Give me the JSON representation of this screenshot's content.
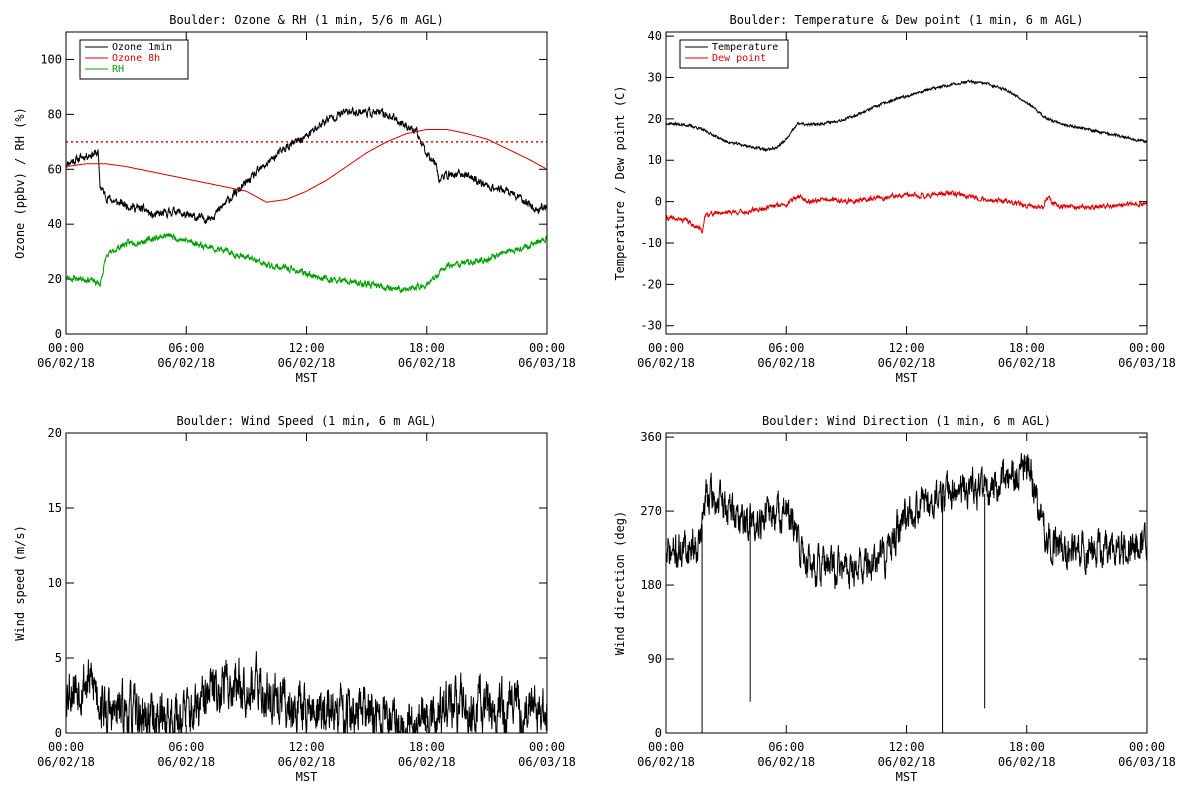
{
  "chart_data": [
    {
      "type": "line",
      "title": "Boulder: Ozone & RH (1 min, 5/6 m AGL)",
      "ylabel": "Ozone (ppbv) / RH (%)",
      "xlabel": "MST",
      "ylim": [
        0,
        110
      ],
      "yticks": [
        0,
        20,
        40,
        60,
        80,
        100
      ],
      "xlim": [
        0,
        24
      ],
      "xticks": [
        {
          "x": 0,
          "time": "00:00",
          "date": "06/02/18"
        },
        {
          "x": 6,
          "time": "06:00",
          "date": "06/02/18"
        },
        {
          "x": 12,
          "time": "12:00",
          "date": "06/02/18"
        },
        {
          "x": 18,
          "time": "18:00",
          "date": "06/02/18"
        },
        {
          "x": 24,
          "time": "00:00",
          "date": "06/03/18"
        }
      ],
      "legend_position": "top-left",
      "threshold": {
        "value": 70,
        "color": "#dd0000",
        "style": "dotted"
      },
      "series": [
        {
          "name": "Ozone 1min",
          "color": "#000000",
          "noise": 1.2,
          "seed": 11,
          "x": [
            0,
            1,
            1.6,
            1.7,
            2,
            2.5,
            3,
            4,
            4.3,
            5,
            5.5,
            6,
            7,
            7.5,
            8,
            9,
            10,
            11,
            12,
            13,
            14,
            15,
            16,
            17,
            17.5,
            18,
            18.5,
            18.6,
            19,
            19.5,
            20,
            21,
            22,
            23,
            23.5,
            24
          ],
          "y": [
            62,
            65,
            66,
            54,
            50,
            48,
            47,
            45,
            43,
            44,
            45,
            43,
            42,
            44,
            48,
            55,
            62,
            68,
            72,
            78,
            81,
            81,
            80,
            76,
            73,
            66,
            62,
            56,
            58,
            58,
            58,
            54,
            52,
            48,
            45,
            47
          ]
        },
        {
          "name": "Ozone 8h",
          "color": "#dd0000",
          "noise": 0,
          "x": [
            0,
            1,
            2,
            3,
            4,
            5,
            6,
            7,
            8,
            9,
            10,
            11,
            12,
            13,
            14,
            15,
            16,
            17,
            18,
            19,
            20,
            21,
            22,
            23,
            24
          ],
          "y": [
            61,
            62,
            62,
            61,
            59.5,
            58,
            56.5,
            55,
            53.5,
            52,
            48,
            49,
            52,
            56,
            61,
            66,
            70,
            73,
            74.5,
            74.5,
            73,
            71,
            67.5,
            64,
            60
          ]
        },
        {
          "name": "RH",
          "color": "#00a000",
          "noise": 0.9,
          "seed": 23,
          "x": [
            0,
            1,
            1.3,
            1.7,
            2,
            2.5,
            3,
            4,
            5,
            6,
            7,
            8,
            9,
            10,
            11,
            12,
            13,
            14,
            15,
            16,
            17,
            17.5,
            18,
            18.5,
            19,
            20,
            21,
            22,
            23,
            24
          ],
          "y": [
            20.5,
            20,
            19.5,
            18,
            28,
            31,
            33,
            34,
            36,
            34,
            32,
            30,
            28,
            25,
            24,
            22,
            20,
            19,
            18,
            17,
            16,
            17,
            18,
            21,
            25,
            26,
            27,
            30,
            32,
            35
          ]
        }
      ]
    },
    {
      "type": "line",
      "title": "Boulder: Temperature & Dew point (1 min, 6 m AGL)",
      "ylabel": "Temperature / Dew point (C)",
      "xlabel": "MST",
      "ylim": [
        -32,
        41
      ],
      "yticks": [
        -30,
        -20,
        -10,
        0,
        10,
        20,
        30,
        40
      ],
      "xlim": [
        0,
        24
      ],
      "xticks": [
        {
          "x": 0,
          "time": "00:00",
          "date": "06/02/18"
        },
        {
          "x": 6,
          "time": "06:00",
          "date": "06/02/18"
        },
        {
          "x": 12,
          "time": "12:00",
          "date": "06/02/18"
        },
        {
          "x": 18,
          "time": "18:00",
          "date": "06/02/18"
        },
        {
          "x": 24,
          "time": "00:00",
          "date": "06/03/18"
        }
      ],
      "legend_position": "top-left",
      "series": [
        {
          "name": "Temperature",
          "color": "#000000",
          "noise": 0.25,
          "seed": 37,
          "x": [
            0,
            1,
            1.5,
            2,
            3,
            4,
            5,
            5.5,
            6,
            6.6,
            7,
            8,
            9,
            10,
            11,
            12,
            13,
            14,
            15,
            16,
            17,
            18,
            19,
            20,
            21,
            22,
            23,
            24
          ],
          "y": [
            19,
            18.5,
            18,
            17,
            14.5,
            13.5,
            12.5,
            13,
            15,
            19,
            18.5,
            19,
            20,
            22,
            24,
            25.5,
            27,
            28,
            29,
            28.5,
            27,
            24,
            20,
            18.5,
            17.5,
            16.5,
            15.5,
            14.5
          ]
        },
        {
          "name": "Dew point",
          "color": "#dd0000",
          "noise": 0.45,
          "seed": 41,
          "x": [
            0,
            1,
            1.5,
            1.8,
            2,
            3,
            4,
            5,
            6,
            6.7,
            7,
            8,
            9,
            10,
            11,
            12,
            13,
            14,
            15,
            16,
            17,
            18,
            18.8,
            19,
            19.5,
            20,
            21,
            22,
            23,
            24
          ],
          "y": [
            -4,
            -4.5,
            -6,
            -7,
            -3,
            -2.5,
            -2.5,
            -1.5,
            -0.5,
            1.5,
            0,
            0.5,
            0,
            0.5,
            1,
            1.5,
            1.5,
            2,
            1.5,
            0.5,
            0,
            -1,
            -1.5,
            1,
            -1,
            -1,
            -1.5,
            -1,
            -0.8,
            -0.5
          ]
        }
      ]
    },
    {
      "type": "line",
      "title": "Boulder: Wind Speed (1 min, 6 m AGL)",
      "ylabel": "Wind speed (m/s)",
      "xlabel": "MST",
      "ylim": [
        0,
        20
      ],
      "yticks": [
        0,
        5,
        10,
        15,
        20
      ],
      "xlim": [
        0,
        24
      ],
      "xticks": [
        {
          "x": 0,
          "time": "00:00",
          "date": "06/02/18"
        },
        {
          "x": 6,
          "time": "06:00",
          "date": "06/02/18"
        },
        {
          "x": 12,
          "time": "12:00",
          "date": "06/02/18"
        },
        {
          "x": 18,
          "time": "18:00",
          "date": "06/02/18"
        },
        {
          "x": 24,
          "time": "00:00",
          "date": "06/03/18"
        }
      ],
      "series": [
        {
          "name": "",
          "color": "#000000",
          "noise": 1.4,
          "seed": 53,
          "x": [
            0,
            0.5,
            1,
            1.5,
            2,
            3,
            4,
            5,
            6,
            6.5,
            7,
            7.5,
            8,
            9,
            10,
            11,
            12,
            13,
            14,
            15,
            16,
            17,
            18,
            19,
            20,
            21,
            22,
            23,
            24
          ],
          "y": [
            3,
            3.2,
            3.5,
            3,
            1.2,
            1.4,
            1,
            1,
            1.3,
            1.4,
            2.2,
            3,
            3.3,
            3.4,
            2.6,
            2,
            1.6,
            1.3,
            1.3,
            1.2,
            1,
            0.9,
            1,
            1.6,
            1.8,
            1.6,
            1.4,
            1.5,
            1.3
          ]
        }
      ]
    },
    {
      "type": "line",
      "title": "Boulder: Wind Direction (1 min, 6 m AGL)",
      "ylabel": "Wind direction (deg)",
      "xlabel": "MST",
      "ylim": [
        0,
        365
      ],
      "yticks": [
        0,
        90,
        180,
        270,
        360
      ],
      "xlim": [
        0,
        24
      ],
      "xticks": [
        {
          "x": 0,
          "time": "00:00",
          "date": "06/02/18"
        },
        {
          "x": 6,
          "time": "06:00",
          "date": "06/02/18"
        },
        {
          "x": 12,
          "time": "12:00",
          "date": "06/02/18"
        },
        {
          "x": 18,
          "time": "18:00",
          "date": "06/02/18"
        },
        {
          "x": 24,
          "time": "00:00",
          "date": "06/03/18"
        }
      ],
      "spikes": [
        {
          "x": 1.8,
          "y": 0
        },
        {
          "x": 4.2,
          "y": 38
        },
        {
          "x": 13.8,
          "y": 0
        },
        {
          "x": 15.9,
          "y": 30
        }
      ],
      "series": [
        {
          "name": "",
          "color": "#000000",
          "noise": 18,
          "seed": 71,
          "x": [
            0,
            1,
            1.7,
            2,
            3,
            4,
            5,
            6,
            6.7,
            7,
            8,
            9,
            10,
            11,
            11.5,
            12,
            13,
            14,
            15,
            16,
            17,
            18,
            18.5,
            19,
            20,
            21,
            22,
            23,
            24
          ],
          "y": [
            215,
            225,
            235,
            290,
            275,
            255,
            265,
            270,
            225,
            210,
            200,
            200,
            205,
            215,
            240,
            270,
            280,
            290,
            300,
            290,
            305,
            320,
            290,
            235,
            225,
            225,
            230,
            225,
            240
          ]
        }
      ]
    }
  ]
}
